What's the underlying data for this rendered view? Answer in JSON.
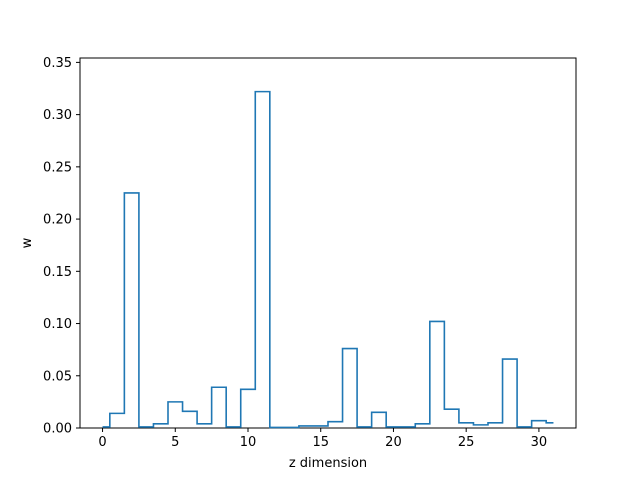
{
  "chart_data": {
    "type": "step",
    "xlabel": "z dimension",
    "ylabel": "w",
    "xlim": [
      -1.55,
      32.55
    ],
    "ylim": [
      0,
      0.3542
    ],
    "xticks": [
      0,
      5,
      10,
      15,
      20,
      25,
      30
    ],
    "yticks": [
      0.0,
      0.05,
      0.1,
      0.15,
      0.2,
      0.25,
      0.3,
      0.35
    ],
    "xtick_labels": [
      "0",
      "5",
      "10",
      "15",
      "20",
      "25",
      "30"
    ],
    "ytick_labels": [
      "0.00",
      "0.05",
      "0.10",
      "0.15",
      "0.20",
      "0.25",
      "0.30",
      "0.35"
    ],
    "grid": false,
    "series": [
      {
        "color": "#1f77b4",
        "x": [
          0,
          1,
          2,
          3,
          4,
          5,
          6,
          7,
          8,
          9,
          10,
          11,
          12,
          13,
          14,
          15,
          16,
          17,
          18,
          19,
          20,
          21,
          22,
          23,
          24,
          25,
          26,
          27,
          28,
          29,
          30,
          31
        ],
        "y": [
          0.001,
          0.014,
          0.225,
          0.001,
          0.004,
          0.025,
          0.016,
          0.004,
          0.039,
          0.001,
          0.037,
          0.322,
          0.0005,
          0.0005,
          0.002,
          0.002,
          0.006,
          0.076,
          0.001,
          0.015,
          0.001,
          0.001,
          0.004,
          0.102,
          0.018,
          0.005,
          0.003,
          0.005,
          0.066,
          0.001,
          0.007,
          0.005
        ]
      }
    ]
  }
}
